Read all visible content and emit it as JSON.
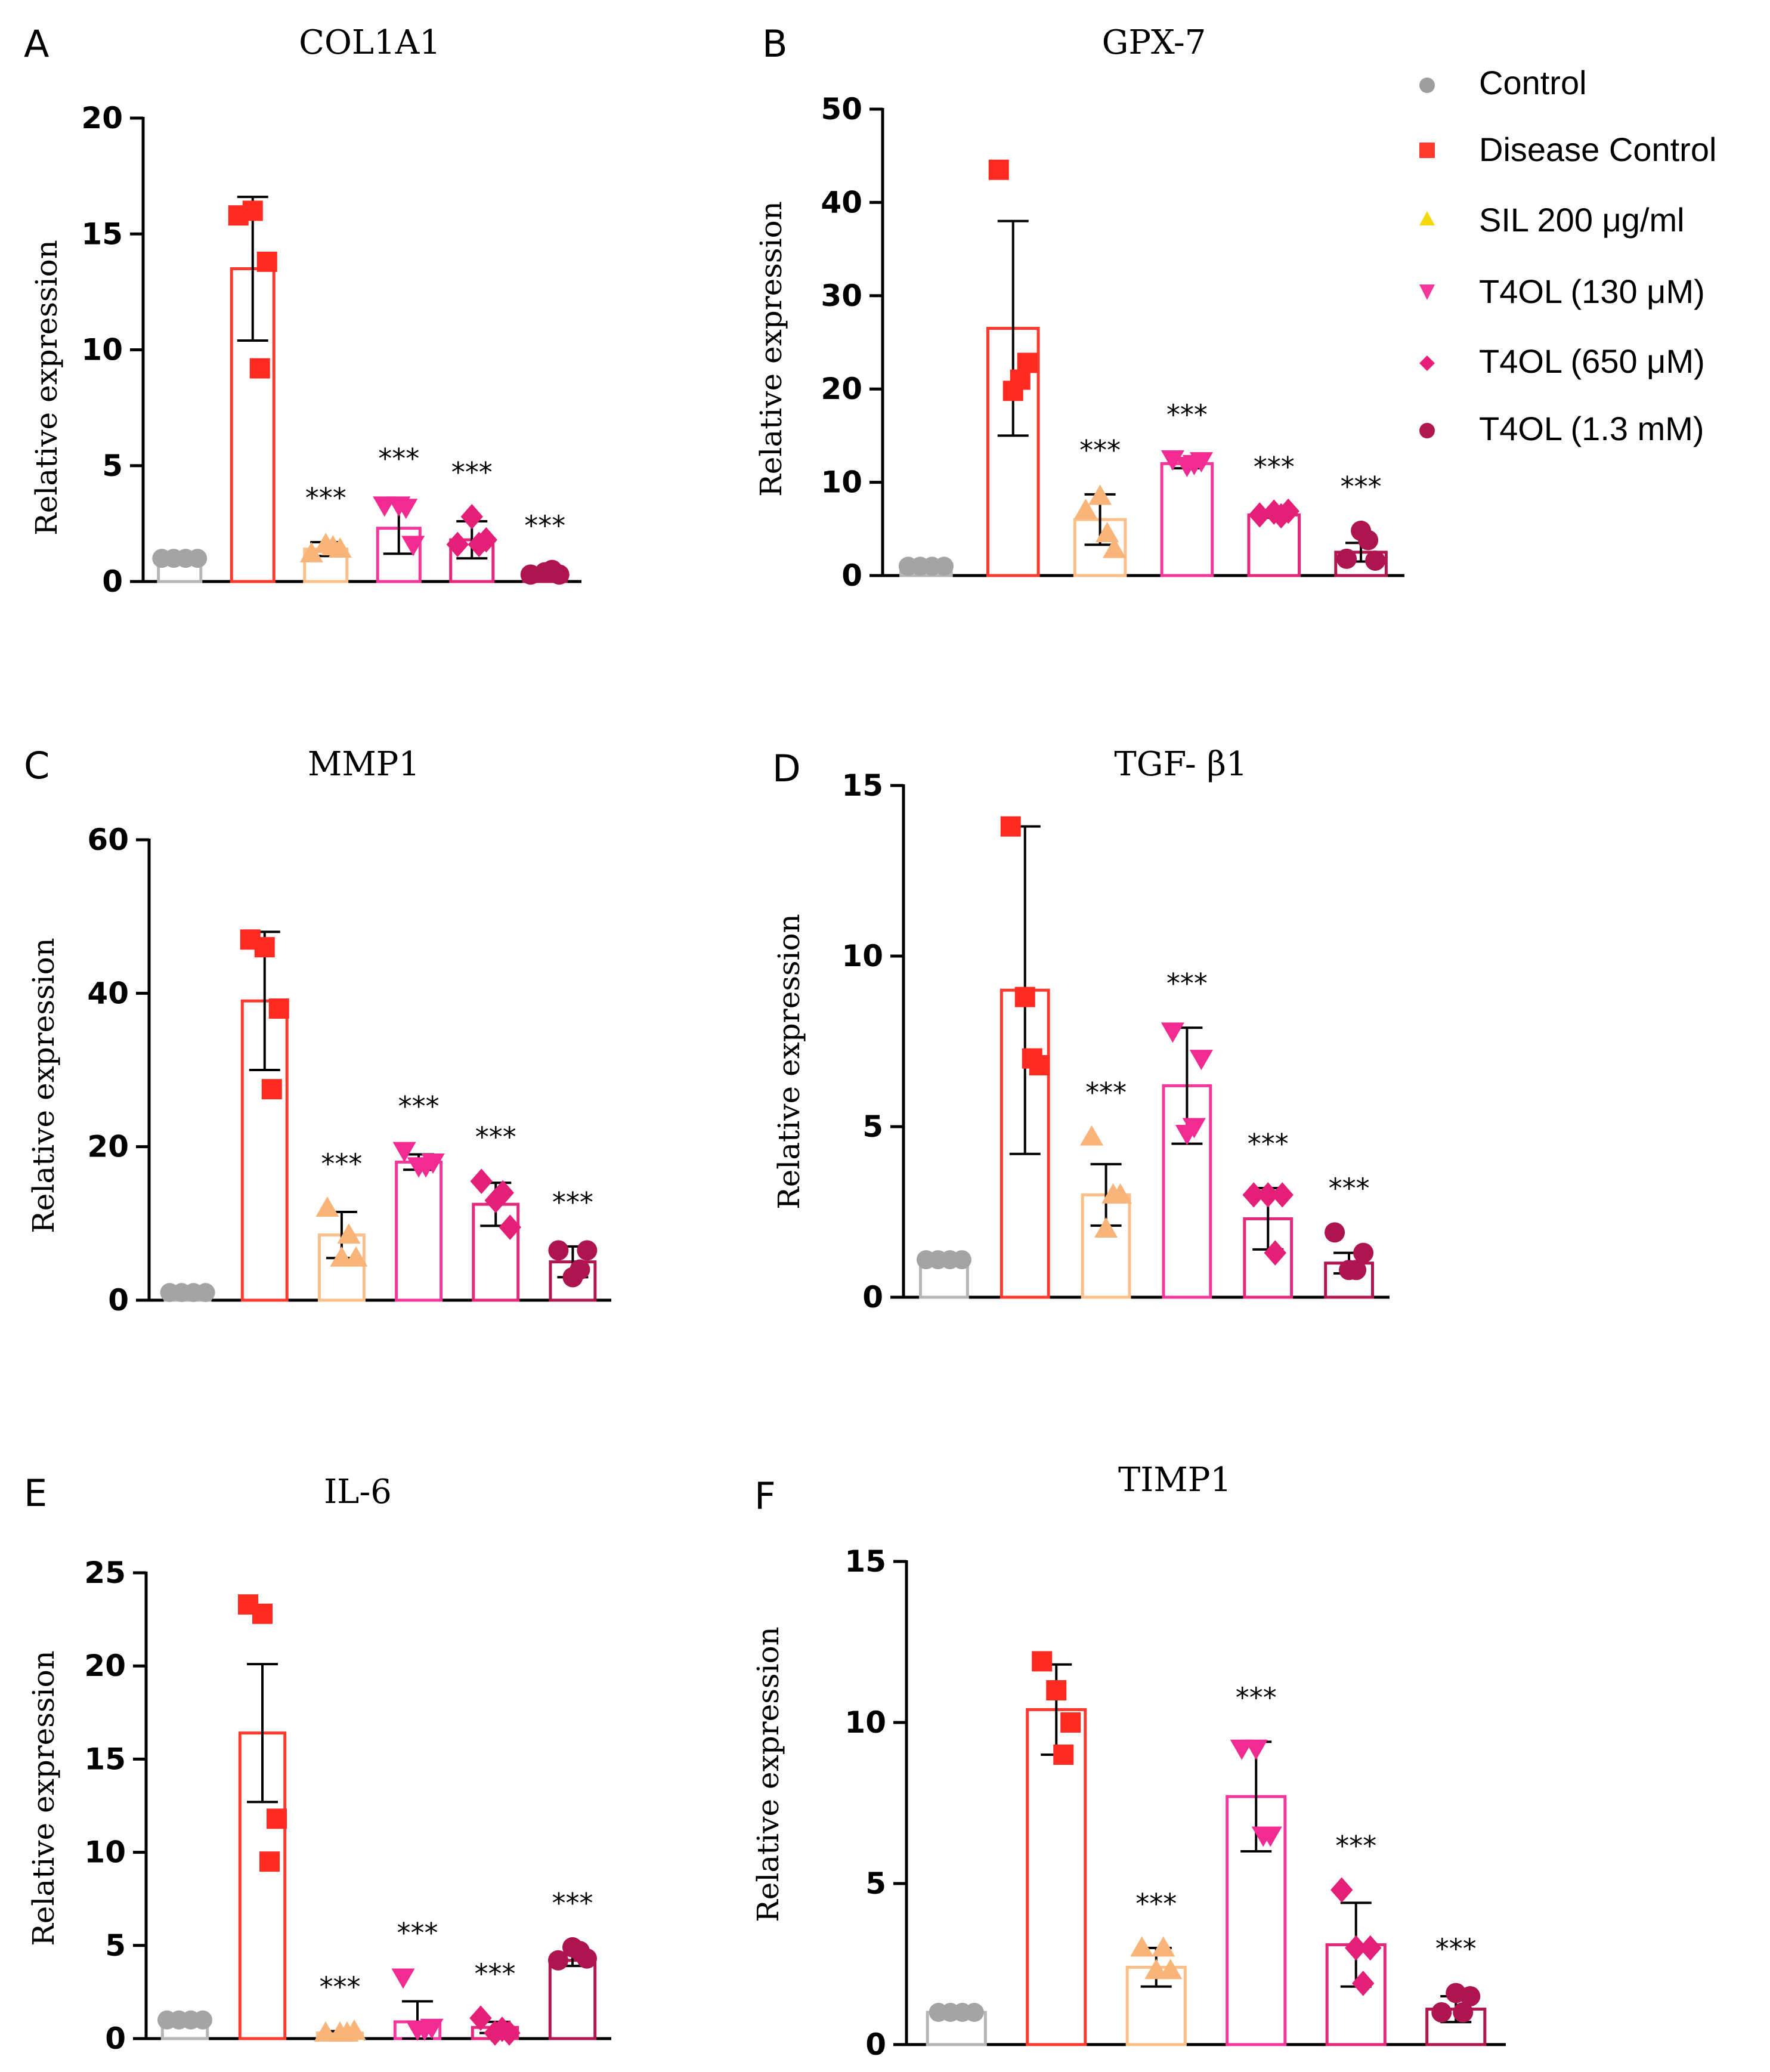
{
  "chart_data": [
    {
      "panel": "A",
      "title": "COL1A1",
      "type": "bar",
      "ylabel": "Relative expression",
      "ylim": [
        0,
        20
      ],
      "yticks": [
        "0",
        "5",
        "10",
        "15",
        "20"
      ],
      "groups": [
        {
          "mean": 1.0,
          "sd": 0.05,
          "points": [
            1.0,
            1.0,
            1.0,
            1.0
          ],
          "sig": ""
        },
        {
          "mean": 13.5,
          "sd": 3.1,
          "points": [
            15.8,
            16.0,
            13.8,
            9.2
          ],
          "sig": ""
        },
        {
          "mean": 1.4,
          "sd": 0.3,
          "points": [
            1.2,
            1.6,
            1.4,
            1.5
          ],
          "sig": "***"
        },
        {
          "mean": 2.3,
          "sd": 1.1,
          "points": [
            3.3,
            3.3,
            1.6,
            3.2
          ],
          "sig": "***"
        },
        {
          "mean": 1.8,
          "sd": 0.8,
          "points": [
            1.6,
            2.8,
            1.8,
            1.6
          ],
          "sig": "***"
        },
        {
          "mean": 0.3,
          "sd": 0.1,
          "points": [
            0.3,
            0.4,
            0.3,
            0.5
          ],
          "sig": "***"
        }
      ]
    },
    {
      "panel": "B",
      "title": "GPX-7",
      "type": "bar",
      "ylabel": "Relative expression",
      "ylim": [
        0,
        50
      ],
      "yticks": [
        "0",
        "10",
        "20",
        "30",
        "40",
        "50"
      ],
      "groups": [
        {
          "mean": 1.0,
          "sd": 0.1,
          "points": [
            1.0,
            1.0,
            1.0,
            1.0
          ],
          "sig": ""
        },
        {
          "mean": 26.5,
          "sd": 11.5,
          "points": [
            43.5,
            19.8,
            22.8,
            21.0
          ],
          "sig": ""
        },
        {
          "mean": 6.0,
          "sd": 2.7,
          "points": [
            7.0,
            8.5,
            2.8,
            4.5
          ],
          "sig": "***"
        },
        {
          "mean": 12.0,
          "sd": 0.5,
          "points": [
            12.5,
            11.8,
            12.3,
            12.0
          ],
          "sig": "***"
        },
        {
          "mean": 6.5,
          "sd": 0.3,
          "points": [
            6.5,
            6.8,
            6.9,
            6.4
          ],
          "sig": "***"
        },
        {
          "mean": 2.5,
          "sd": 1.0,
          "points": [
            1.8,
            4.8,
            1.6,
            3.8
          ],
          "sig": "***"
        }
      ]
    },
    {
      "panel": "C",
      "title": "MMP1",
      "type": "bar",
      "ylabel": "Relative expression",
      "ylim": [
        0,
        60
      ],
      "yticks": [
        "0",
        "20",
        "40",
        "60"
      ],
      "groups": [
        {
          "mean": 1.0,
          "sd": 0.1,
          "points": [
            1.0,
            1.0,
            1.0,
            1.0
          ],
          "sig": ""
        },
        {
          "mean": 39.0,
          "sd": 9.0,
          "points": [
            47.0,
            46.0,
            38.0,
            27.5
          ],
          "sig": ""
        },
        {
          "mean": 8.5,
          "sd": 3.0,
          "points": [
            12.0,
            5.5,
            5.5,
            8.5
          ],
          "sig": "***"
        },
        {
          "mean": 18.0,
          "sd": 1.0,
          "points": [
            19.5,
            17.5,
            18.0,
            17.5
          ],
          "sig": "***"
        },
        {
          "mean": 12.5,
          "sd": 2.8,
          "points": [
            15.5,
            13.0,
            9.5,
            14.0
          ],
          "sig": "***"
        },
        {
          "mean": 5.0,
          "sd": 2.0,
          "points": [
            6.5,
            3.0,
            6.5,
            4.0
          ],
          "sig": "***"
        }
      ]
    },
    {
      "panel": "D",
      "title": "TGF- β1",
      "type": "bar",
      "ylabel": "Relative expression",
      "ylim": [
        0,
        15
      ],
      "yticks": [
        "0",
        "5",
        "10",
        "15"
      ],
      "groups": [
        {
          "mean": 1.1,
          "sd": 0.1,
          "points": [
            1.1,
            1.1,
            1.1,
            1.1
          ],
          "sig": ""
        },
        {
          "mean": 9.0,
          "sd": 4.8,
          "points": [
            13.8,
            8.8,
            6.8,
            7.0
          ],
          "sig": ""
        },
        {
          "mean": 3.0,
          "sd": 0.9,
          "points": [
            4.7,
            2.0,
            3.0,
            3.0
          ],
          "sig": "***"
        },
        {
          "mean": 6.2,
          "sd": 1.7,
          "points": [
            7.8,
            4.8,
            7.0,
            5.0
          ],
          "sig": "***"
        },
        {
          "mean": 2.3,
          "sd": 0.9,
          "points": [
            3.0,
            3.0,
            3.0,
            1.3
          ],
          "sig": "***"
        },
        {
          "mean": 1.0,
          "sd": 0.3,
          "points": [
            1.9,
            0.8,
            1.3,
            0.8
          ],
          "sig": "***"
        }
      ]
    },
    {
      "panel": "E",
      "title": "IL-6",
      "type": "bar",
      "ylabel": "Relative expression",
      "ylim": [
        0,
        25
      ],
      "yticks": [
        "0",
        "5",
        "10",
        "15",
        "20",
        "25"
      ],
      "groups": [
        {
          "mean": 1.0,
          "sd": 0.1,
          "points": [
            1.0,
            1.0,
            1.0,
            1.0
          ],
          "sig": ""
        },
        {
          "mean": 16.4,
          "sd": 3.7,
          "points": [
            23.3,
            22.8,
            11.8,
            9.5
          ],
          "sig": ""
        },
        {
          "mean": 0.3,
          "sd": 0.1,
          "points": [
            0.3,
            0.3,
            0.4,
            0.3
          ],
          "sig": "***"
        },
        {
          "mean": 0.9,
          "sd": 1.1,
          "points": [
            3.3,
            0.5,
            0.6,
            0.5
          ],
          "sig": "***"
        },
        {
          "mean": 0.6,
          "sd": 0.3,
          "points": [
            1.1,
            0.3,
            0.3,
            0.5
          ],
          "sig": "***"
        },
        {
          "mean": 4.2,
          "sd": 0.3,
          "points": [
            4.2,
            4.9,
            4.3,
            4.7
          ],
          "sig": "***"
        }
      ]
    },
    {
      "panel": "F",
      "title": "TIMP1",
      "type": "bar",
      "ylabel": "Relative expression",
      "ylim": [
        0,
        15
      ],
      "yticks": [
        "0",
        "5",
        "10",
        "15"
      ],
      "groups": [
        {
          "mean": 1.0,
          "sd": 0.1,
          "points": [
            1.0,
            1.0,
            1.0,
            1.0
          ],
          "sig": ""
        },
        {
          "mean": 10.4,
          "sd": 1.4,
          "points": [
            11.9,
            11.0,
            10.0,
            9.0
          ],
          "sig": ""
        },
        {
          "mean": 2.4,
          "sd": 0.6,
          "points": [
            3.0,
            2.3,
            2.3,
            3.0
          ],
          "sig": "***"
        },
        {
          "mean": 7.7,
          "sd": 1.7,
          "points": [
            9.2,
            9.2,
            6.5,
            6.5
          ],
          "sig": "***"
        },
        {
          "mean": 3.1,
          "sd": 1.3,
          "points": [
            4.8,
            3.0,
            3.0,
            1.9
          ],
          "sig": "***"
        },
        {
          "mean": 1.1,
          "sd": 0.4,
          "points": [
            1.0,
            1.6,
            1.5,
            1.0
          ],
          "sig": "***"
        }
      ]
    }
  ],
  "legend": [
    {
      "label": "Control",
      "marker": "circle",
      "color": "#9e9e9e"
    },
    {
      "label": "Disease Control",
      "marker": "square",
      "color": "#ff3b30"
    },
    {
      "label": "SIL 200 μg/ml",
      "marker": "triangle",
      "color": "#f5d90a"
    },
    {
      "label": "T4OL (130 μM)",
      "marker": "triangle-down",
      "color": "#f5379c"
    },
    {
      "label": "T4OL (650 μM)",
      "marker": "diamond",
      "color": "#e91e7b"
    },
    {
      "label": "T4OL (1.3 mM)",
      "marker": "circle",
      "color": "#b0174f"
    }
  ],
  "group_styles": [
    {
      "stroke": "#b6b6b6",
      "fill": "#a4a4a4",
      "marker": "circle"
    },
    {
      "stroke": "#ff3b30",
      "fill": "#ff2a20",
      "marker": "square"
    },
    {
      "stroke": "#fbbf8a",
      "fill": "#f9b47a",
      "marker": "triangle"
    },
    {
      "stroke": "#f5379c",
      "fill": "#f22b92",
      "marker": "triangle-down"
    },
    {
      "stroke": "#e4297d",
      "fill": "#e31f78",
      "marker": "diamond"
    },
    {
      "stroke": "#b0174f",
      "fill": "#ad1450",
      "marker": "circle"
    }
  ]
}
